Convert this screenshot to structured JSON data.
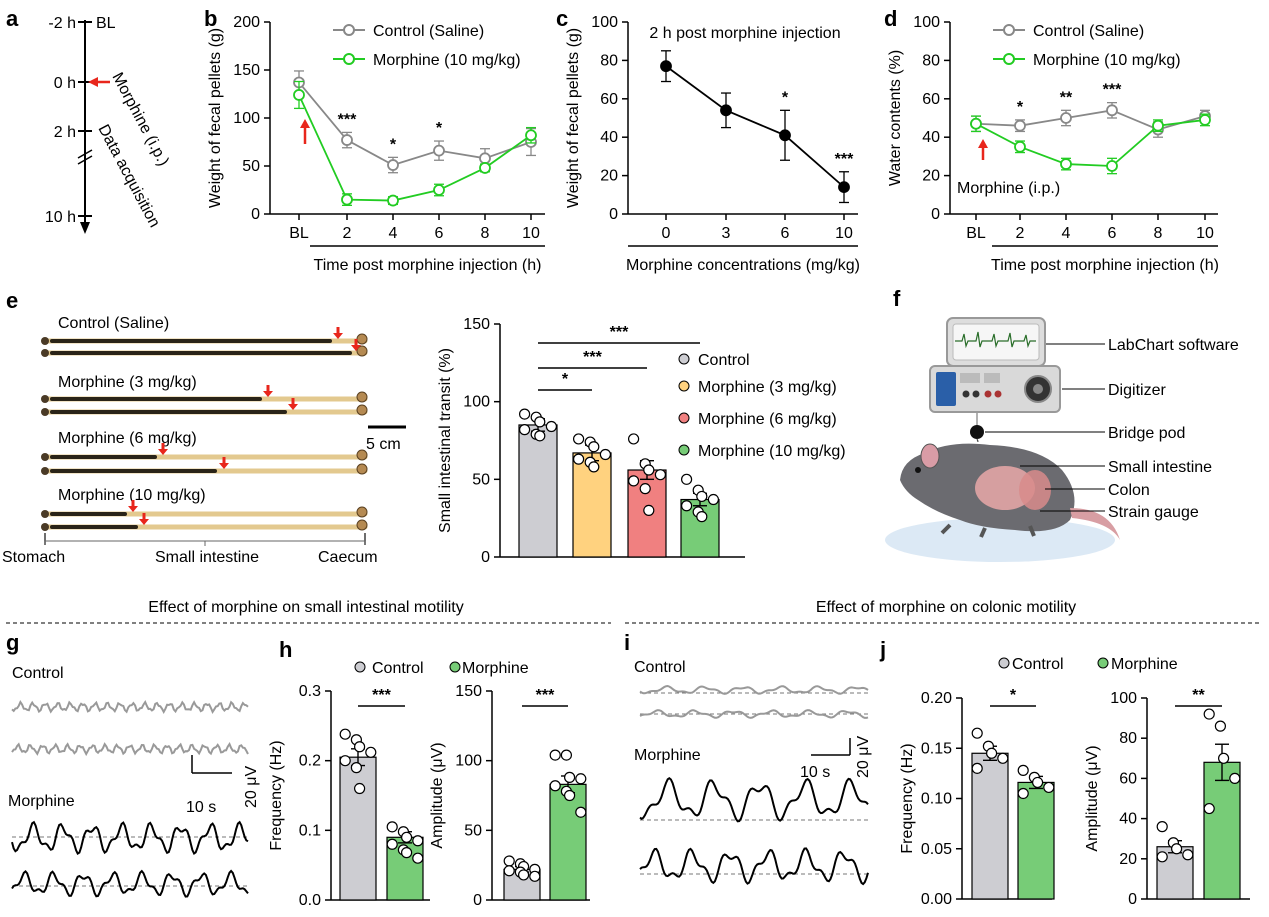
{
  "panel_labels": {
    "a": "a",
    "b": "b",
    "c": "c",
    "d": "d",
    "e": "e",
    "f": "f",
    "g": "g",
    "h": "h",
    "i": "i",
    "j": "j"
  },
  "colors": {
    "control": "#888888",
    "morphine_line": "#22cc22",
    "morphine_bar": "#77cc77",
    "m3": "#ffd27f",
    "m6": "#f08080",
    "control_bar": "#cdcdd2",
    "arrow": "#e8261c"
  },
  "panel_a": {
    "times": [
      "-2 h",
      "0 h",
      "2 h",
      "10 h"
    ],
    "bl": "BL",
    "inj": "Morphine (i.p.)",
    "acq": "Data acquisition"
  },
  "section_titles": {
    "small": "Effect of morphine on small intestinal motility",
    "colon": "Effect of morphine on colonic motility"
  },
  "panel_e": {
    "groups": [
      "Control (Saline)",
      "Morphine (3 mg/kg)",
      "Morphine (6 mg/kg)",
      "Morphine (10 mg/kg)"
    ],
    "scale": "5 cm",
    "regions": [
      "Stomach",
      "Small intestine",
      "Caecum"
    ]
  },
  "panel_f": {
    "labels": [
      "LabChart software",
      "Digitizer",
      "Bridge pod",
      "Small intestine",
      "Colon",
      "Strain gauge"
    ]
  },
  "panel_g": {
    "control": "Control",
    "morphine": "Morphine",
    "scale_x": "10 s",
    "scale_y": "20 μV"
  },
  "panel_i": {
    "control": "Control",
    "morphine": "Morphine",
    "scale_x": "10 s",
    "scale_y": "20 μV"
  },
  "chart_data": [
    {
      "id": "b",
      "type": "line",
      "xlabel": "Time post morphine injection (h)",
      "ylabel": "Weight of fecal pellets (g)",
      "categories": [
        "BL",
        "2",
        "4",
        "6",
        "8",
        "10"
      ],
      "ylim": [
        0,
        200
      ],
      "yticks": [
        "0",
        "50",
        "100",
        "150",
        "200"
      ],
      "series": [
        {
          "name": "Control (Saline)",
          "values": [
            137,
            77,
            51,
            66,
            58,
            75
          ],
          "err": [
            12,
            8,
            8,
            10,
            10,
            14
          ]
        },
        {
          "name": "Morphine (10 mg/kg)",
          "values": [
            124,
            15,
            14,
            25,
            48,
            82
          ],
          "err": [
            14,
            6,
            4,
            6,
            4,
            8
          ]
        }
      ],
      "stars": [
        "",
        "***",
        "*",
        "*",
        "",
        ""
      ],
      "annotations": [
        "↑"
      ]
    },
    {
      "id": "c",
      "type": "line",
      "title": "2 h post morphine injection",
      "xlabel": "Morphine concentrations (mg/kg)",
      "ylabel": "Weight of fecal pellets (g)",
      "categories": [
        "0",
        "3",
        "6",
        "10"
      ],
      "ylim": [
        0,
        100
      ],
      "yticks": [
        "0",
        "20",
        "40",
        "60",
        "80",
        "100"
      ],
      "series": [
        {
          "name": "Morphine",
          "values": [
            77,
            54,
            41,
            14
          ],
          "err": [
            8,
            9,
            13,
            8
          ]
        }
      ],
      "stars": [
        "",
        "",
        "*",
        "***"
      ]
    },
    {
      "id": "d",
      "type": "line",
      "xlabel": "Time post morphine injection (h)",
      "ylabel": "Water contents (%)",
      "categories": [
        "BL",
        "2",
        "4",
        "6",
        "8",
        "10"
      ],
      "ylim": [
        0,
        100
      ],
      "yticks": [
        "0",
        "20",
        "40",
        "60",
        "80",
        "100"
      ],
      "series": [
        {
          "name": "Control (Saline)",
          "values": [
            47,
            46,
            50,
            54,
            44,
            51
          ],
          "err": [
            4,
            3,
            4,
            4,
            4,
            3
          ]
        },
        {
          "name": "Morphine (10 mg/kg)",
          "values": [
            47,
            35,
            26,
            25,
            46,
            49
          ],
          "err": [
            4,
            3,
            3,
            4,
            3,
            3
          ]
        }
      ],
      "stars": [
        "",
        "*",
        "**",
        "***",
        "",
        ""
      ],
      "annotations": [
        "Morphine (i.p.)"
      ]
    },
    {
      "id": "e_bar",
      "type": "bar",
      "ylabel": "Small intestinal transit (%)",
      "ylim": [
        0,
        150
      ],
      "yticks": [
        "0",
        "50",
        "100",
        "150"
      ],
      "categories": [
        "Control",
        "Morphine (3 mg/kg)",
        "Morphine (6 mg/kg)",
        "Morphine (10 mg/kg)"
      ],
      "values": [
        85,
        67,
        56,
        37
      ],
      "err": [
        4,
        5,
        6,
        4
      ],
      "points": [
        [
          92,
          90,
          87,
          84,
          82,
          79,
          78
        ],
        [
          76,
          74,
          71,
          66,
          63,
          61,
          58
        ],
        [
          76,
          60,
          56,
          53,
          49,
          44,
          30
        ],
        [
          50,
          43,
          39,
          37,
          33,
          29,
          26
        ]
      ],
      "brackets": [
        {
          "pair": [
            0,
            1
          ],
          "label": "*"
        },
        {
          "pair": [
            0,
            2
          ],
          "label": "***"
        },
        {
          "pair": [
            0,
            3
          ],
          "label": "***"
        }
      ]
    },
    {
      "id": "h_freq",
      "type": "bar",
      "ylabel": "Frequency (Hz)",
      "ylim": [
        0,
        0.3
      ],
      "yticks": [
        "0.0",
        "0.1",
        "0.2",
        "0.3"
      ],
      "categories": [
        "Control",
        "Morphine"
      ],
      "values": [
        0.205,
        0.09
      ],
      "err": [
        0.012,
        0.008
      ],
      "points": [
        [
          0.238,
          0.23,
          0.22,
          0.212,
          0.2,
          0.19,
          0.16
        ],
        [
          0.105,
          0.098,
          0.09,
          0.085,
          0.08,
          0.072,
          0.068,
          0.06
        ]
      ],
      "brackets": [
        {
          "pair": [
            0,
            1
          ],
          "label": "***"
        }
      ]
    },
    {
      "id": "h_amp",
      "type": "bar",
      "ylabel": "Amplitude (μV)",
      "ylim": [
        0,
        150
      ],
      "yticks": [
        "0",
        "50",
        "100",
        "150"
      ],
      "categories": [
        "Control",
        "Morphine"
      ],
      "values": [
        22,
        83
      ],
      "err": [
        2,
        6
      ],
      "points": [
        [
          28,
          26,
          24,
          22,
          21,
          20,
          18,
          17
        ],
        [
          104,
          104,
          88,
          87,
          82,
          78,
          75,
          63
        ]
      ],
      "brackets": [
        {
          "pair": [
            0,
            1
          ],
          "label": "***"
        }
      ]
    },
    {
      "id": "j_freq",
      "type": "bar",
      "ylabel": "Frequency (Hz)",
      "ylim": [
        0,
        0.2
      ],
      "yticks": [
        "0.00",
        "0.05",
        "0.10",
        "0.15",
        "0.20"
      ],
      "categories": [
        "Control",
        "Morphine"
      ],
      "values": [
        0.145,
        0.116
      ],
      "err": [
        0.007,
        0.006
      ],
      "points": [
        [
          0.165,
          0.152,
          0.145,
          0.14,
          0.13
        ],
        [
          0.128,
          0.121,
          0.116,
          0.111,
          0.105
        ]
      ],
      "brackets": [
        {
          "pair": [
            0,
            1
          ],
          "label": "*"
        }
      ]
    },
    {
      "id": "j_amp",
      "type": "bar",
      "ylabel": "Amplitude (μV)",
      "ylim": [
        0,
        100
      ],
      "yticks": [
        "0",
        "20",
        "40",
        "60",
        "80",
        "100"
      ],
      "categories": [
        "Control",
        "Morphine"
      ],
      "values": [
        26,
        68
      ],
      "err": [
        3,
        9
      ],
      "points": [
        [
          36,
          28,
          25,
          22,
          21
        ],
        [
          92,
          86,
          70,
          60,
          45
        ]
      ],
      "brackets": [
        {
          "pair": [
            0,
            1
          ],
          "label": "**"
        }
      ]
    }
  ],
  "legends": {
    "bd": [
      "Control (Saline)",
      "Morphine (10 mg/kg)"
    ],
    "e": [
      "Control",
      "Morphine (3 mg/kg)",
      "Morphine (6 mg/kg)",
      "Morphine (10 mg/kg)"
    ],
    "hj": [
      "Control",
      "Morphine"
    ]
  }
}
